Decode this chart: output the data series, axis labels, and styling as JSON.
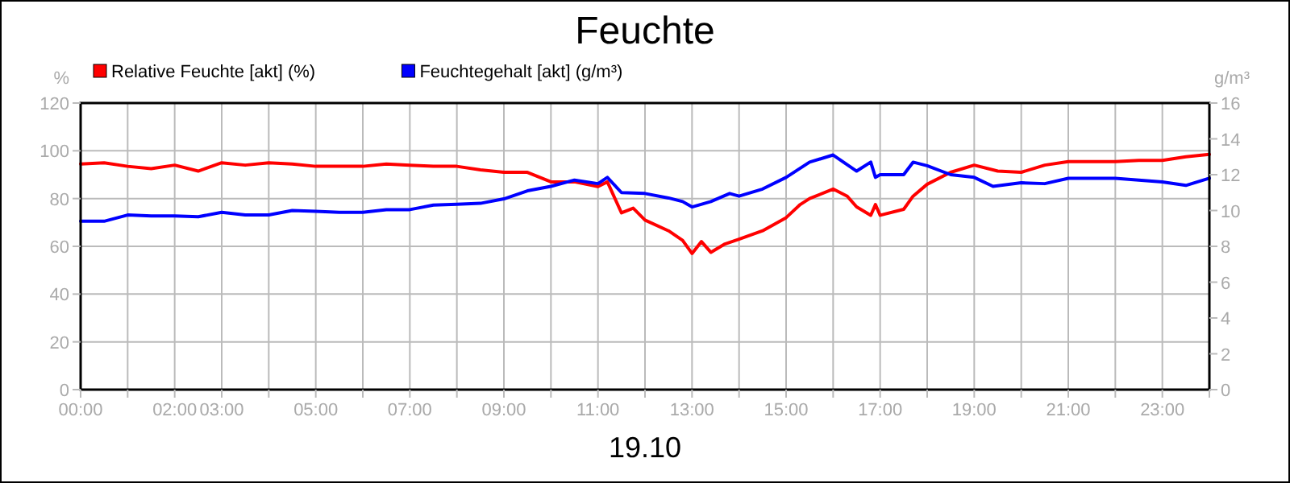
{
  "chart_data": {
    "type": "line",
    "title": "Feuchte",
    "xlabel": "19.10",
    "ylabel": "%",
    "y2label": "g/m³",
    "legend": "top left",
    "grid": true,
    "line_style": "solid",
    "marker": "none",
    "xlim": [
      0,
      24
    ],
    "ylim": [
      0,
      120
    ],
    "yticks": [
      0,
      20,
      40,
      60,
      80,
      100,
      120
    ],
    "y2lim": [
      0,
      16
    ],
    "y2ticks": [
      0,
      2,
      4,
      6,
      8,
      10,
      12,
      14,
      16
    ],
    "xticks": [
      {
        "value": 0,
        "label": "00:00"
      },
      {
        "value": 1,
        "label": null
      },
      {
        "value": 2,
        "label": "02:00"
      },
      {
        "value": 3,
        "label": "03:00"
      },
      {
        "value": 4,
        "label": null
      },
      {
        "value": 5,
        "label": "05:00"
      },
      {
        "value": 6,
        "label": null
      },
      {
        "value": 7,
        "label": "07:00"
      },
      {
        "value": 8,
        "label": null
      },
      {
        "value": 9,
        "label": "09:00"
      },
      {
        "value": 10,
        "label": null
      },
      {
        "value": 11,
        "label": "11:00"
      },
      {
        "value": 12,
        "label": null
      },
      {
        "value": 13,
        "label": "13:00"
      },
      {
        "value": 14,
        "label": null
      },
      {
        "value": 15,
        "label": "15:00"
      },
      {
        "value": 16,
        "label": null
      },
      {
        "value": 17,
        "label": "17:00"
      },
      {
        "value": 18,
        "label": null
      },
      {
        "value": 19,
        "label": "19:00"
      },
      {
        "value": 20,
        "label": null
      },
      {
        "value": 21,
        "label": "21:00"
      },
      {
        "value": 22,
        "label": null
      },
      {
        "value": 23,
        "label": "23:00"
      },
      {
        "value": 24,
        "label": null
      }
    ],
    "series": [
      {
        "name": "Relative Feuchte [akt] (%)",
        "color": "#ff0000",
        "x": [
          0,
          0.5,
          1,
          1.5,
          2,
          2.5,
          3,
          3.5,
          4,
          4.5,
          5,
          5.5,
          6,
          6.5,
          7,
          7.5,
          8,
          8.5,
          9,
          9.5,
          10,
          10.5,
          11,
          11.2,
          11.5,
          11.75,
          12,
          12.5,
          12.8,
          13,
          13.2,
          13.4,
          13.7,
          14,
          14.5,
          15,
          15.3,
          15.5,
          16,
          16.3,
          16.5,
          16.8,
          16.9,
          17,
          17.5,
          17.7,
          18,
          18.5,
          19,
          19.5,
          20,
          20.5,
          21,
          21.5,
          22,
          22.5,
          23,
          23.5,
          24
        ],
        "values": [
          94.5,
          95,
          93.5,
          92.5,
          94,
          91.5,
          95,
          94,
          95,
          94.5,
          93.5,
          93.5,
          93.5,
          94.5,
          94,
          93.5,
          93.5,
          92,
          91,
          91,
          87,
          87,
          85,
          87,
          74,
          76,
          71,
          66.5,
          62.5,
          57,
          62,
          57.5,
          61,
          63,
          66.5,
          72,
          77.5,
          80,
          84,
          81,
          76.5,
          73,
          77.5,
          73,
          75.5,
          81,
          86,
          91,
          94,
          91.5,
          91,
          94,
          95.5,
          95.5,
          95.5,
          96,
          96,
          97.5,
          98.5
        ]
      },
      {
        "name": "Feuchtegehalt [akt] (g/m³)",
        "color": "#0000ff",
        "axis": "y2",
        "x": [
          0,
          0.5,
          1,
          1.5,
          2,
          2.5,
          3,
          3.5,
          4,
          4.5,
          5,
          5.5,
          6,
          6.5,
          7,
          7.5,
          8,
          8.5,
          9,
          9.5,
          10,
          10.5,
          11,
          11.2,
          11.5,
          12,
          12.5,
          12.8,
          13,
          13.4,
          13.8,
          14,
          14.5,
          15,
          15.5,
          16,
          16.5,
          16.8,
          16.9,
          17,
          17.5,
          17.7,
          18,
          18.5,
          19,
          19.4,
          20,
          20.5,
          21,
          22,
          23,
          23.5,
          24
        ],
        "values": [
          9.4,
          9.4,
          9.75,
          9.7,
          9.7,
          9.65,
          9.9,
          9.75,
          9.75,
          10,
          9.95,
          9.9,
          9.9,
          10.05,
          10.05,
          10.3,
          10.35,
          10.4,
          10.65,
          11.1,
          11.35,
          11.7,
          11.5,
          11.85,
          11,
          10.95,
          10.7,
          10.5,
          10.2,
          10.5,
          10.95,
          10.8,
          11.2,
          11.85,
          12.7,
          13.1,
          12.2,
          12.7,
          11.85,
          12,
          12,
          12.7,
          12.5,
          12,
          11.85,
          11.35,
          11.55,
          11.5,
          11.8,
          11.8,
          11.6,
          11.4,
          11.8
        ]
      }
    ]
  }
}
